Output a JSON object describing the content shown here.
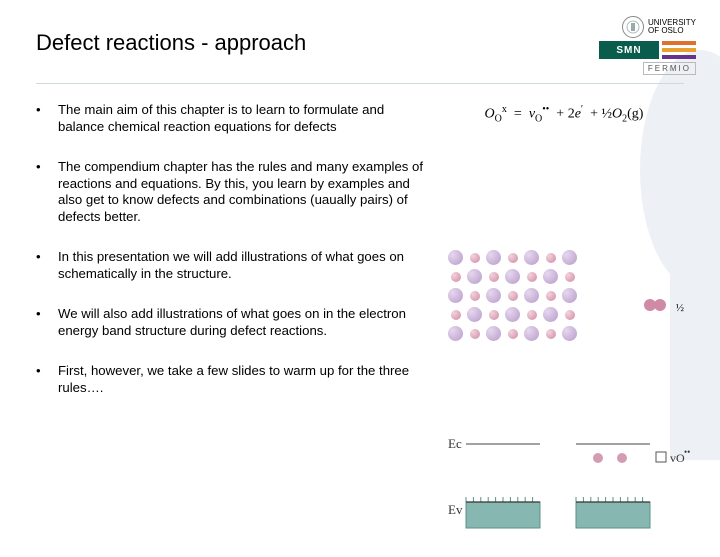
{
  "header": {
    "title": "Defect reactions - approach",
    "logos": {
      "uio_line1": "UNIVERSITY",
      "uio_line2": "OF OSLO",
      "smn_text": "SMN",
      "smn_sub": "",
      "fermio": "FERMIO"
    }
  },
  "bullets": [
    "The main aim of this chapter is to learn to formulate and balance chemical reaction equations for defects",
    "The compendium chapter has the rules and many examples of reactions and equations. By this, you learn by examples and also get to know defects and combinations (uaually pairs) of defects better.",
    "In this presentation we will add illustrations of what goes on schematically in the structure.",
    "We will also add illustrations of what goes on in the electron energy band structure during defect reactions.",
    "First, however, we take a few slides to warm up for the three rules…."
  ],
  "equation": {
    "lhs_species": "O",
    "lhs_sub": "O",
    "lhs_sup": "x",
    "rhs_vacancy": "v",
    "rhs_vac_sub": "O",
    "rhs_vac_sup": "••",
    "rhs_e_coeff": "2",
    "rhs_e": "e",
    "rhs_e_sup": "′",
    "rhs_o2_coeff": "½",
    "rhs_o2": "O",
    "rhs_o2_sub": "2",
    "rhs_o2_state": "(g)"
  },
  "lattice": {
    "metal_color": "#b79bca",
    "oxygen_color": "#cf8aa5",
    "fraction": "½"
  },
  "band": {
    "ec_label": "Ec",
    "ev_label": "Ev",
    "vo_label": "vO",
    "vo_sup": "••",
    "band_fill": "#86b7b0",
    "band_stroke": "#5a9187",
    "electron_fill": "#d49cb2"
  }
}
